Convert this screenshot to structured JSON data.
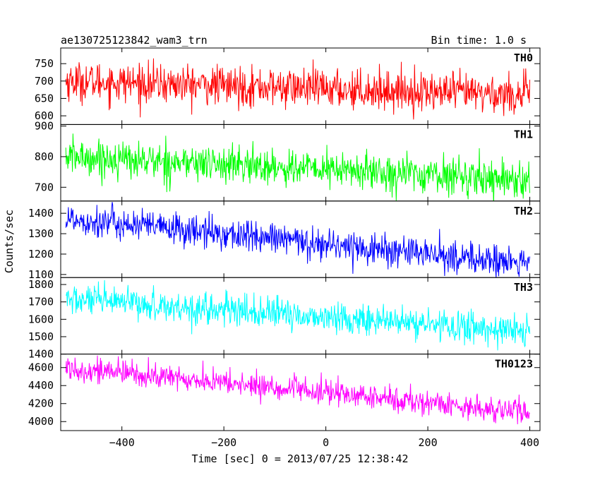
{
  "header": {
    "title": "ae130725123842_wam3_trn",
    "bin_time": "Bin time: 1.0 s"
  },
  "chart_data": {
    "type": "line",
    "xlabel": "Time [sec] 0 = 2013/07/25 12:38:42",
    "ylabel": "Counts/sec",
    "xlim": [
      -520,
      420
    ],
    "xticks": [
      -400,
      -200,
      0,
      200,
      400
    ],
    "x_start": -510,
    "x_end": 400,
    "bin_time_s": 1.0,
    "panels": [
      {
        "name": "TH0",
        "color": "#ff0000",
        "ylim": [
          575,
          795
        ],
        "yticks": [
          600,
          650,
          700,
          750
        ],
        "trend": {
          "start": 700,
          "end": 660
        },
        "noise_sd": 28
      },
      {
        "name": "TH1",
        "color": "#00ff00",
        "ylim": [
          655,
          905
        ],
        "yticks": [
          700,
          800,
          900
        ],
        "trend": {
          "start": 800,
          "end": 725
        },
        "noise_sd": 30
      },
      {
        "name": "TH2",
        "color": "#0000ff",
        "ylim": [
          1085,
          1460
        ],
        "yticks": [
          1100,
          1200,
          1300,
          1400
        ],
        "trend": {
          "start": 1375,
          "end": 1150
        },
        "noise_sd": 40
      },
      {
        "name": "TH3",
        "color": "#00ffff",
        "ylim": [
          1400,
          1840
        ],
        "yticks": [
          1400,
          1500,
          1600,
          1700,
          1800
        ],
        "trend": {
          "start": 1715,
          "end": 1530
        },
        "noise_sd": 45
      },
      {
        "name": "TH0123",
        "color": "#ff00ff",
        "ylim": [
          3900,
          4750
        ],
        "yticks": [
          4000,
          4200,
          4400,
          4600
        ],
        "trend": {
          "start": 4600,
          "end": 4100
        },
        "noise_sd": 70
      }
    ]
  }
}
